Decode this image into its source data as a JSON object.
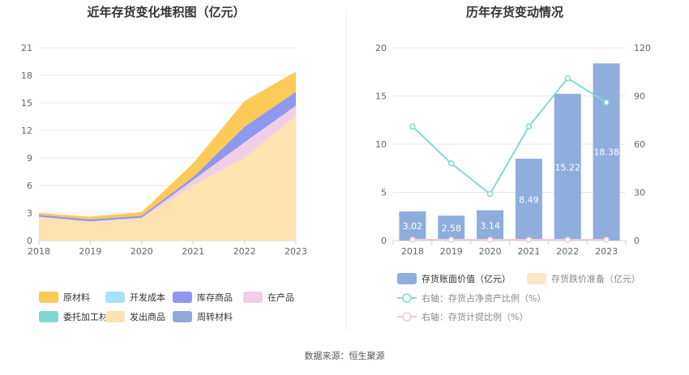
{
  "source_text": "数据来源：恒生聚源",
  "chart_data": [
    {
      "type": "area",
      "stacked": true,
      "title": "近年存货变化堆积图（亿元）",
      "x": [
        "2018",
        "2019",
        "2020",
        "2021",
        "2022",
        "2023"
      ],
      "ylim": [
        0,
        21
      ],
      "yticks": [
        0,
        3,
        6,
        9,
        12,
        15,
        18,
        21
      ],
      "grid": true,
      "legend_position": "bottom-left",
      "series": [
        {
          "name": "发出商品",
          "color": "#fde3b0",
          "values": [
            2.5,
            2.0,
            2.4,
            6.0,
            9.0,
            13.6
          ]
        },
        {
          "name": "在产品",
          "color": "#f0cfe6",
          "values": [
            0.1,
            0.1,
            0.1,
            0.6,
            1.7,
            1.1
          ]
        },
        {
          "name": "库存商品",
          "color": "#8f97ee",
          "values": [
            0.2,
            0.2,
            0.2,
            0.3,
            1.7,
            1.5
          ]
        },
        {
          "name": "开发成本",
          "color": "#a6e3f7",
          "values": [
            0.0,
            0.0,
            0.0,
            0.0,
            0.0,
            0.0
          ]
        },
        {
          "name": "委托加工材料",
          "color": "#7fd7d2",
          "values": [
            0.0,
            0.0,
            0.0,
            0.0,
            0.0,
            0.0
          ]
        },
        {
          "name": "周转材料",
          "color": "#90a9dc",
          "values": [
            0.0,
            0.0,
            0.0,
            0.0,
            0.0,
            0.0
          ]
        },
        {
          "name": "原材料",
          "color": "#fcca57",
          "values": [
            0.2,
            0.3,
            0.4,
            1.5,
            2.8,
            2.2
          ]
        }
      ],
      "legend_order": [
        "原材料",
        "开发成本",
        "库存商品",
        "在产品",
        "委托加工材料",
        "发出商品",
        "周转材料"
      ]
    },
    {
      "type": "bar",
      "title": "历年存货变动情况",
      "categories": [
        "2018",
        "2019",
        "2020",
        "2021",
        "2022",
        "2023"
      ],
      "ylim": [
        0,
        20
      ],
      "yticks": [
        0,
        5,
        10,
        15,
        20
      ],
      "y2lim": [
        0,
        120
      ],
      "y2ticks": [
        0,
        30,
        60,
        90,
        120
      ],
      "grid": true,
      "legend_position": "bottom",
      "series": [
        {
          "name": "存货账面价值（亿元）",
          "type": "bar",
          "axis": "left",
          "color": "#8eaedd",
          "values": [
            3.02,
            2.58,
            3.14,
            8.49,
            15.22,
            18.38
          ],
          "labels": [
            "3.02",
            "2.58",
            "3.14",
            "8.49",
            "15.22",
            "18.38"
          ]
        },
        {
          "name": "存货跌价准备（亿元）",
          "type": "bar",
          "axis": "left",
          "color": "#fde7c6",
          "values": [
            0,
            0,
            0,
            0,
            0,
            0
          ]
        },
        {
          "name": "右轴：存货占净资产比例（%）",
          "type": "line",
          "axis": "right",
          "color": "#84d8d8",
          "values": [
            71,
            48,
            29,
            71,
            101,
            86
          ]
        },
        {
          "name": "右轴：存货计提比例（%）",
          "type": "line",
          "axis": "right",
          "color": "#f0c9dc",
          "values": [
            0.5,
            0.5,
            0.5,
            0.5,
            0.5,
            0.5
          ]
        }
      ]
    }
  ]
}
